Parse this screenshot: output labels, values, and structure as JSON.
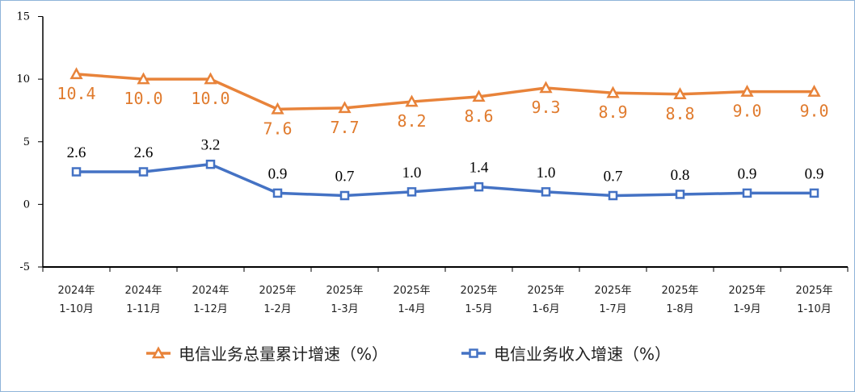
{
  "chart_data": {
    "type": "line",
    "categories": [
      [
        "2024年",
        "1-10月"
      ],
      [
        "2024年",
        "1-11月"
      ],
      [
        "2024年",
        "1-12月"
      ],
      [
        "2025年",
        "1-2月"
      ],
      [
        "2025年",
        "1-3月"
      ],
      [
        "2025年",
        "1-4月"
      ],
      [
        "2025年",
        "1-5月"
      ],
      [
        "2025年",
        "1-6月"
      ],
      [
        "2025年",
        "1-7月"
      ],
      [
        "2025年",
        "1-8月"
      ],
      [
        "2025年",
        "1-9月"
      ],
      [
        "2025年",
        "1-10月"
      ]
    ],
    "ylim": [
      -5,
      15
    ],
    "yticks": [
      15,
      10,
      5,
      0,
      -5
    ],
    "grid": false,
    "legend_position": "bottom",
    "series": [
      {
        "name": "电信业务总量累计增速（%）",
        "color": "#e8833a",
        "marker": "triangle",
        "values": [
          10.4,
          10.0,
          10.0,
          7.6,
          7.7,
          8.2,
          8.6,
          9.3,
          8.9,
          8.8,
          9.0,
          9.0
        ]
      },
      {
        "name": "电信业务收入增速（%）",
        "color": "#4472c4",
        "marker": "square",
        "values": [
          2.6,
          2.6,
          3.2,
          0.9,
          0.7,
          1.0,
          1.4,
          1.0,
          0.7,
          0.8,
          0.9,
          0.9
        ]
      }
    ]
  }
}
